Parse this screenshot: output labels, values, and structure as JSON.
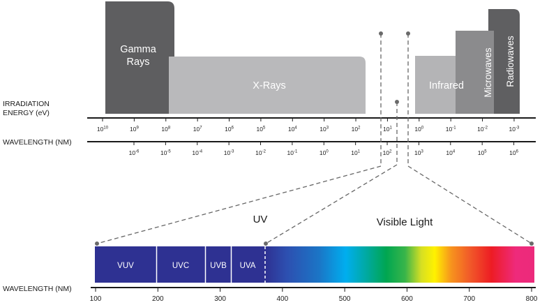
{
  "colors": {
    "gamma": "#5e5e60",
    "xrays": "#b9b9bb",
    "infrared": "#b4b4b6",
    "microwaves": "#8b8b8d",
    "radiowaves": "#5f5f61",
    "axis": "#1a1a1a",
    "dash": "#666666",
    "uvBand": "#2e3192"
  },
  "top": {
    "bands": [
      {
        "key": "gamma",
        "label": "Gamma Rays",
        "lines": [
          "Gamma",
          "Rays"
        ]
      },
      {
        "key": "xrays",
        "label": "X-Rays"
      },
      {
        "key": "infrared",
        "label": "Infrared"
      },
      {
        "key": "microwaves",
        "label": "Microwaves"
      },
      {
        "key": "radiowaves",
        "label": "Radiowaves"
      }
    ],
    "energy_label": [
      "IRRADIATION",
      "ENERGY (eV)"
    ],
    "wavelength_label": "WAVELENGTH (NM)",
    "energy_ticks": [
      {
        "base": "10",
        "exp": "10"
      },
      {
        "base": "10",
        "exp": "9"
      },
      {
        "base": "10",
        "exp": "8"
      },
      {
        "base": "10",
        "exp": "7"
      },
      {
        "base": "10",
        "exp": "6"
      },
      {
        "base": "10",
        "exp": "5"
      },
      {
        "base": "10",
        "exp": "4"
      },
      {
        "base": "10",
        "exp": "3"
      },
      {
        "base": "10",
        "exp": "2"
      },
      {
        "base": "10",
        "exp": "1"
      },
      {
        "base": "10",
        "exp": "0"
      },
      {
        "base": "10",
        "exp": "-1"
      },
      {
        "base": "10",
        "exp": "-2"
      },
      {
        "base": "10",
        "exp": "-3"
      }
    ],
    "wavelength_ticks": [
      {
        "base": "10",
        "exp": "-6"
      },
      {
        "base": "10",
        "exp": "-5"
      },
      {
        "base": "10",
        "exp": "-4"
      },
      {
        "base": "10",
        "exp": "-3"
      },
      {
        "base": "10",
        "exp": "-2"
      },
      {
        "base": "10",
        "exp": "-1"
      },
      {
        "base": "10",
        "exp": "0"
      },
      {
        "base": "10",
        "exp": "1"
      },
      {
        "base": "10",
        "exp": "2"
      },
      {
        "base": "10",
        "exp": "3"
      },
      {
        "base": "10",
        "exp": "4"
      },
      {
        "base": "10",
        "exp": "5"
      },
      {
        "base": "10",
        "exp": "6"
      }
    ]
  },
  "bottom": {
    "uv_title": "UV",
    "visible_title": "Visible Light",
    "wavelength_label": "WAVELENGTH (NM)",
    "segments": [
      "VUV",
      "UVC",
      "UVB",
      "UVA"
    ],
    "ticks": [
      "100",
      "200",
      "300",
      "400",
      "500",
      "600",
      "700",
      "800"
    ],
    "spectrum_stops": [
      {
        "pos": 0.0,
        "color": "#2e3192"
      },
      {
        "pos": 0.08,
        "color": "#2d4fb0"
      },
      {
        "pos": 0.2,
        "color": "#1b75c6"
      },
      {
        "pos": 0.3,
        "color": "#00aeef"
      },
      {
        "pos": 0.38,
        "color": "#00a99d"
      },
      {
        "pos": 0.45,
        "color": "#00a651"
      },
      {
        "pos": 0.52,
        "color": "#39b54a"
      },
      {
        "pos": 0.58,
        "color": "#d7df23"
      },
      {
        "pos": 0.63,
        "color": "#fff200"
      },
      {
        "pos": 0.69,
        "color": "#f7941d"
      },
      {
        "pos": 0.76,
        "color": "#f15a29"
      },
      {
        "pos": 0.84,
        "color": "#ed1c24"
      },
      {
        "pos": 0.93,
        "color": "#ee2a7b"
      },
      {
        "pos": 1.0,
        "color": "#ec2a7b"
      }
    ]
  }
}
